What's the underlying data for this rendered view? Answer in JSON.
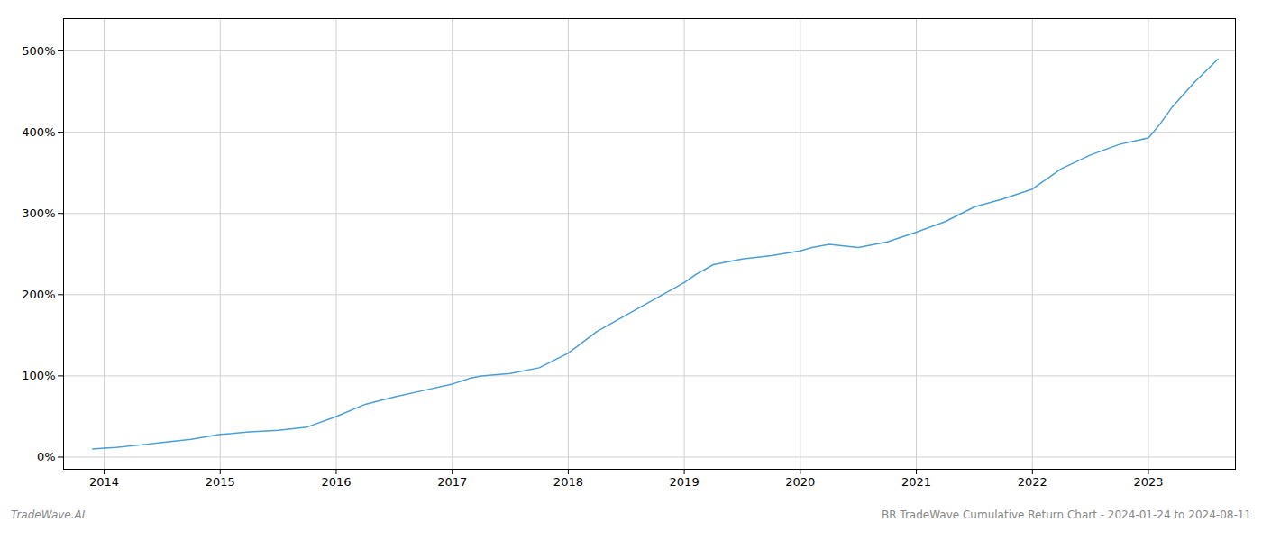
{
  "chart_data": {
    "type": "line",
    "title": "BR TradeWave Cumulative Return Chart - 2024-01-24 to 2024-08-11",
    "annotations": [
      "TradeWave.AI"
    ],
    "color": "#4a9fd4",
    "grid": true,
    "x": [
      2013.9,
      2014.0,
      2014.1,
      2014.25,
      2014.5,
      2014.75,
      2015.0,
      2015.1,
      2015.25,
      2015.5,
      2015.75,
      2016.0,
      2016.25,
      2016.5,
      2016.75,
      2017.0,
      2017.15,
      2017.25,
      2017.5,
      2017.75,
      2018.0,
      2018.25,
      2018.5,
      2018.75,
      2019.0,
      2019.1,
      2019.25,
      2019.5,
      2019.75,
      2020.0,
      2020.1,
      2020.25,
      2020.5,
      2020.75,
      2021.0,
      2021.25,
      2021.5,
      2021.75,
      2022.0,
      2022.25,
      2022.5,
      2022.75,
      2023.0,
      2023.1,
      2023.2,
      2023.4,
      2023.6
    ],
    "values": [
      10,
      11,
      12,
      14,
      18,
      22,
      28,
      29,
      31,
      33,
      37,
      50,
      65,
      74,
      82,
      90,
      97,
      100,
      103,
      110,
      128,
      155,
      175,
      195,
      215,
      225,
      237,
      244,
      248,
      254,
      258,
      262,
      258,
      265,
      277,
      290,
      308,
      318,
      330,
      355,
      372,
      385,
      393,
      410,
      430,
      462,
      490
    ],
    "xlim": [
      2013.65,
      2023.75
    ],
    "xticks": [
      2014,
      2015,
      2016,
      2017,
      2018,
      2019,
      2020,
      2021,
      2022,
      2023
    ],
    "ylim": [
      -15,
      540
    ],
    "yticks": [
      {
        "value": 0,
        "label": "0%"
      },
      {
        "value": 100,
        "label": "100%"
      },
      {
        "value": 200,
        "label": "200%"
      },
      {
        "value": 300,
        "label": "300%"
      },
      {
        "value": 400,
        "label": "400%"
      },
      {
        "value": 500,
        "label": "500%"
      }
    ]
  }
}
